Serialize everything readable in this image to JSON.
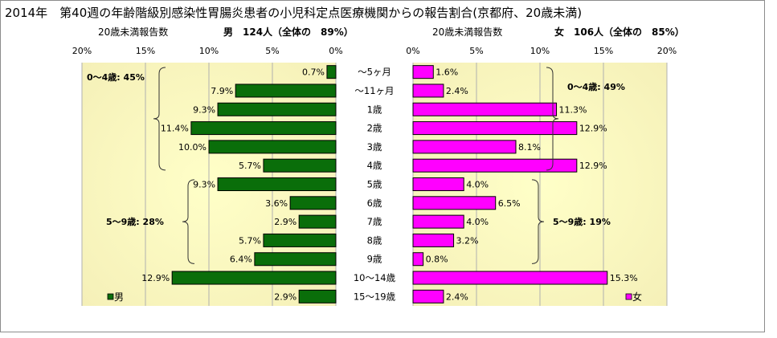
{
  "title": "2014年　第40週の年齢階級別感染性胃腸炎患者の小児科定点医療機関からの報告割合(京都府、20歳未満)",
  "colors": {
    "male_bar": "#0a6e0a",
    "female_bar": "#ff00ff",
    "plot_bg_center": "#ffffc8",
    "plot_bg_edge": "#f5f0b8"
  },
  "chart_data": [
    {
      "type": "bar",
      "orientation": "horizontal",
      "direction": "right-to-left",
      "header_left": "20歳未満報告数",
      "header_right": "男　124人（全体の　89%）",
      "categories": [
        "～5ヶ月",
        "～11ヶ月",
        "1歳",
        "2歳",
        "3歳",
        "4歳",
        "5歳",
        "6歳",
        "7歳",
        "8歳",
        "9歳",
        "10～14歳",
        "15～19歳"
      ],
      "series": [
        {
          "name": "男",
          "values": [
            0.7,
            7.9,
            9.3,
            11.4,
            10.0,
            5.7,
            9.3,
            3.6,
            2.9,
            5.7,
            6.4,
            12.9,
            2.9
          ]
        }
      ],
      "data_labels": [
        "0.7%",
        "7.9%",
        "9.3%",
        "11.4%",
        "10.0%",
        "5.7%",
        "9.3%",
        "3.6%",
        "2.9%",
        "5.7%",
        "6.4%",
        "12.9%",
        "2.9%"
      ],
      "xlim": [
        0,
        20
      ],
      "xticks": [
        "20%",
        "15%",
        "10%",
        "5%",
        "0%"
      ],
      "xtick_values": [
        20,
        15,
        10,
        5,
        0
      ],
      "grid": "vertical",
      "legend": "bottom-left",
      "annotations": [
        {
          "text": "0～4歳: 45%",
          "from": 0,
          "to": 5
        },
        {
          "text": "5～9歳: 28%",
          "from": 6,
          "to": 10
        }
      ]
    },
    {
      "type": "bar",
      "orientation": "horizontal",
      "direction": "left-to-right",
      "header_left": "20歳未満報告数",
      "header_right": "女　106人（全体の　85%）",
      "categories": [
        "～5ヶ月",
        "～11ヶ月",
        "1歳",
        "2歳",
        "3歳",
        "4歳",
        "5歳",
        "6歳",
        "7歳",
        "8歳",
        "9歳",
        "10～14歳",
        "15～19歳"
      ],
      "series": [
        {
          "name": "女",
          "values": [
            1.6,
            2.4,
            11.3,
            12.9,
            8.1,
            12.9,
            4.0,
            6.5,
            4.0,
            3.2,
            0.8,
            15.3,
            2.4
          ]
        }
      ],
      "data_labels": [
        "1.6%",
        "2.4%",
        "11.3%",
        "12.9%",
        "8.1%",
        "12.9%",
        "4.0%",
        "6.5%",
        "4.0%",
        "3.2%",
        "0.8%",
        "15.3%",
        "2.4%"
      ],
      "xlim": [
        0,
        20
      ],
      "xticks": [
        "0%",
        "5%",
        "10%",
        "15%",
        "20%"
      ],
      "xtick_values": [
        0,
        5,
        10,
        15,
        20
      ],
      "grid": "vertical",
      "legend": "bottom-right",
      "annotations": [
        {
          "text": "0～4歳: 49%",
          "from": 0,
          "to": 5
        },
        {
          "text": "5～9歳: 19%",
          "from": 6,
          "to": 10
        }
      ]
    }
  ]
}
